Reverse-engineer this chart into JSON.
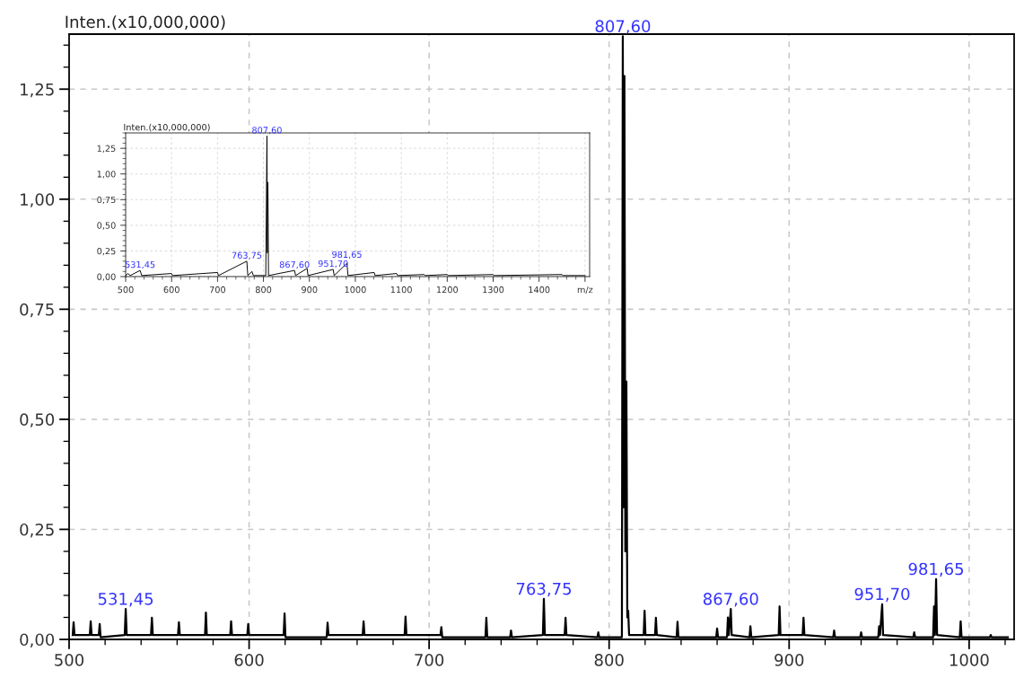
{
  "chart_data": [
    {
      "type": "line",
      "ylabel": "Inten.(x10,000,000)",
      "xlim": [
        500,
        1025
      ],
      "ylim": [
        0,
        1.375
      ],
      "xticks": [
        500,
        600,
        700,
        800,
        900,
        1000
      ],
      "yticks": [
        {
          "value": 0,
          "label": "0,00"
        },
        {
          "value": 0.25,
          "label": "0,25"
        },
        {
          "value": 0.5,
          "label": "0,50"
        },
        {
          "value": 0.75,
          "label": "0,75"
        },
        {
          "value": 1.0,
          "label": "1,00"
        },
        {
          "value": 1.25,
          "label": "1,25"
        }
      ],
      "grid": true,
      "line_style": "solid",
      "series": [
        {
          "color": "#000000",
          "x": [
            502,
            502.5,
            503,
            511.5,
            512,
            512.5,
            516.5,
            517,
            517.5,
            530.9,
            531.45,
            532,
            545.5,
            546,
            546.5,
            560.5,
            561,
            561.5,
            575.5,
            576,
            576.5,
            589.5,
            590,
            590.5,
            599,
            599.5,
            600,
            619.2,
            619.7,
            620.2,
            643.1,
            643.6,
            644.1,
            663.1,
            663.6,
            664.1,
            686.4,
            686.9,
            687.4,
            706.3,
            706.8,
            707.3,
            731.3,
            731.8,
            732.3,
            745,
            745.5,
            746,
            763.2,
            763.75,
            764.3,
            775.3,
            775.8,
            776.3,
            793.5,
            794,
            794.5,
            807.1,
            807.6,
            808.1,
            808.5,
            809,
            809.6,
            810.1,
            810.6,
            811.1,
            819.2,
            819.7,
            820.2,
            825.5,
            826,
            826.5,
            837.5,
            838,
            838.5,
            859.5,
            860,
            860.5,
            865.5,
            866,
            866.5,
            867.6,
            868.1,
            878,
            878.5,
            879,
            894.2,
            894.7,
            895.2,
            907.5,
            908,
            908.5,
            924.5,
            925,
            925.5,
            939.5,
            940,
            940.5,
            949.5,
            950,
            950.5,
            951.7,
            952.2,
            969,
            969.5,
            970,
            980,
            980.5,
            981,
            981.65,
            982.2,
            994.8,
            995.3,
            995.8,
            1011.5,
            1012,
            1012.5,
            1021.5
          ],
          "values": [
            0.01,
            0.039,
            0.01,
            0.01,
            0.041,
            0.01,
            0.01,
            0.035,
            0.005,
            0.01,
            0.069,
            0.01,
            0.01,
            0.049,
            0.01,
            0.01,
            0.039,
            0.01,
            0.01,
            0.061,
            0.01,
            0.01,
            0.041,
            0.01,
            0.01,
            0.035,
            0.01,
            0.01,
            0.059,
            0.005,
            0.005,
            0.038,
            0.01,
            0.01,
            0.041,
            0.01,
            0.01,
            0.052,
            0.01,
            0.01,
            0.028,
            0.005,
            0.005,
            0.049,
            0.005,
            0.005,
            0.02,
            0.005,
            0.01,
            0.092,
            0.01,
            0.01,
            0.049,
            0.01,
            0.005,
            0.016,
            0.005,
            0.005,
            1.37,
            0.3,
            1.28,
            0.2,
            0.586,
            0.05,
            0.065,
            0.01,
            0.01,
            0.065,
            0.01,
            0.01,
            0.049,
            0.01,
            0.005,
            0.04,
            0.005,
            0.005,
            0.025,
            0.005,
            0.005,
            0.05,
            0.01,
            0.069,
            0.01,
            0.005,
            0.03,
            0.005,
            0.01,
            0.075,
            0.01,
            0.01,
            0.049,
            0.01,
            0.005,
            0.02,
            0.005,
            0.005,
            0.016,
            0.005,
            0.005,
            0.03,
            0.01,
            0.08,
            0.01,
            0.005,
            0.016,
            0.005,
            0.005,
            0.075,
            0.01,
            0.137,
            0.01,
            0.005,
            0.041,
            0.005,
            0.005,
            0.01,
            0.005,
            0.005
          ]
        }
      ],
      "annotations": [
        {
          "text": "531,45",
          "x": 531.45,
          "y": 0.069
        },
        {
          "text": "763,75",
          "x": 763.75,
          "y": 0.092
        },
        {
          "text": "807,60",
          "x": 807.6,
          "y": 1.37
        },
        {
          "text": "867,60",
          "x": 867.6,
          "y": 0.069
        },
        {
          "text": "951,70",
          "x": 951.7,
          "y": 0.08
        },
        {
          "text": "981,65",
          "x": 981.65,
          "y": 0.137
        }
      ]
    },
    {
      "type": "line",
      "ylabel": "Inten.(x10,000,000)",
      "xlim": [
        500,
        1510
      ],
      "ylim": [
        0,
        1.4
      ],
      "xticks": [
        500,
        600,
        700,
        800,
        900,
        1000,
        1100,
        1200,
        1300,
        1400,
        {
          "value": 1500,
          "label": "m/z"
        }
      ],
      "yticks": [
        {
          "value": 0,
          "label": "0,00"
        },
        {
          "value": 0.25,
          "label": "0,25"
        },
        {
          "value": 0.5,
          "label": "0,50"
        },
        {
          "value": 0.75,
          "label": "0,75"
        },
        {
          "value": 1.0,
          "label": "1,00"
        },
        {
          "value": 1.25,
          "label": "1,25"
        }
      ],
      "grid": true,
      "line_style": "solid",
      "series": [
        {
          "color": "#000000",
          "x": [
            500,
            505,
            510,
            531.45,
            535,
            600,
            602,
            700,
            702,
            763.75,
            766,
            775,
            778,
            805,
            807.6,
            808.5,
            809.6,
            811,
            867.6,
            870,
            895,
            897,
            951.7,
            954,
            981.65,
            984,
            1041,
            1043,
            1090,
            1092,
            1150,
            1152,
            1200,
            1202,
            1300,
            1302,
            1450,
            1452,
            1500
          ],
          "values": [
            0.01,
            0.03,
            0.01,
            0.06,
            0.01,
            0.03,
            0.01,
            0.04,
            0.01,
            0.15,
            0.01,
            0.05,
            0.01,
            0.01,
            1.37,
            0.23,
            0.92,
            0.01,
            0.06,
            0.01,
            0.08,
            0.01,
            0.07,
            0.01,
            0.13,
            0.01,
            0.04,
            0.01,
            0.03,
            0.01,
            0.02,
            0.01,
            0.02,
            0.01,
            0.02,
            0.01,
            0.02,
            0.01,
            0.01
          ]
        }
      ],
      "annotations": [
        {
          "text": "531,45",
          "x": 531.45,
          "y": 0.06
        },
        {
          "text": "763,75",
          "x": 763.75,
          "y": 0.15
        },
        {
          "text": "807,60",
          "x": 807.6,
          "y": 1.37
        },
        {
          "text": "867,60",
          "x": 867.6,
          "y": 0.06
        },
        {
          "text": "951,70",
          "x": 951.7,
          "y": 0.07
        },
        {
          "text": "981,65",
          "x": 981.65,
          "y": 0.13
        }
      ]
    }
  ]
}
